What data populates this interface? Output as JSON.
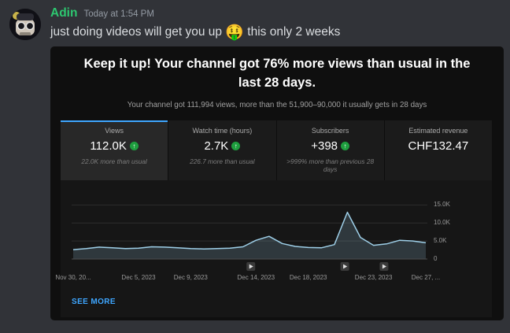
{
  "colors": {
    "username": "#2dc770",
    "accent_blue": "#3ea6ff",
    "positive_green": "#1e9e3e",
    "chart_line": "#9ecfe8"
  },
  "icons": {
    "trend_up_arrow": "↑",
    "video_play": "▶"
  },
  "message": {
    "username": "Adin",
    "timestamp": "Today at 1:54 PM",
    "text_before": "just doing videos will get you up ",
    "emoji": "🤑",
    "text_after": " this only 2 weeks"
  },
  "analytics": {
    "headline": "Keep it up! Your channel got 76% more views than usual in the last 28 days.",
    "subtitle": "Your channel got 111,994 views, more than the 51,900–90,000 it usually gets in 28 days",
    "tabs": [
      {
        "label": "Views",
        "value": "112.0K",
        "note": "22.0K more than usual",
        "trend": "up",
        "selected": true
      },
      {
        "label": "Watch time (hours)",
        "value": "2.7K",
        "note": "226.7 more than usual",
        "trend": "up",
        "selected": false
      },
      {
        "label": "Subscribers",
        "value": "+398",
        "note": ">999% more than previous 28 days",
        "trend": "up",
        "selected": false
      },
      {
        "label": "Estimated revenue",
        "value": "CHF132.47",
        "note": "",
        "trend": "none",
        "selected": false
      }
    ],
    "see_more_label": "SEE MORE"
  },
  "chart_data": {
    "type": "area",
    "title": "",
    "xlabel": "",
    "ylabel": "",
    "x_unit": "day (Nov 30 – Dec 27, 2023)",
    "ylim": [
      0,
      17500
    ],
    "grid": true,
    "legend": false,
    "x_ticks": [
      {
        "day": 0,
        "label": "Nov 30, 20..."
      },
      {
        "day": 5,
        "label": "Dec 5, 2023"
      },
      {
        "day": 9,
        "label": "Dec 9, 2023"
      },
      {
        "day": 14,
        "label": "Dec 14, 2023"
      },
      {
        "day": 18,
        "label": "Dec 18, 2023"
      },
      {
        "day": 23,
        "label": "Dec 23, 2023"
      },
      {
        "day": 27,
        "label": "Dec 27, ..."
      }
    ],
    "y_ticks": [
      {
        "value": 15000,
        "label": "15.0K"
      },
      {
        "value": 10000,
        "label": "10.0K"
      },
      {
        "value": 5000,
        "label": "5.0K"
      },
      {
        "value": 0,
        "label": "0"
      }
    ],
    "values": [
      2600,
      2900,
      3300,
      3100,
      2900,
      3000,
      3400,
      3300,
      3100,
      2900,
      2800,
      2900,
      3000,
      3400,
      5200,
      6300,
      4300,
      3500,
      3200,
      3100,
      4000,
      13000,
      6000,
      3800,
      4200,
      5200,
      5000,
      4500
    ],
    "video_marker_days": [
      13.6,
      20.8,
      23.8
    ]
  }
}
